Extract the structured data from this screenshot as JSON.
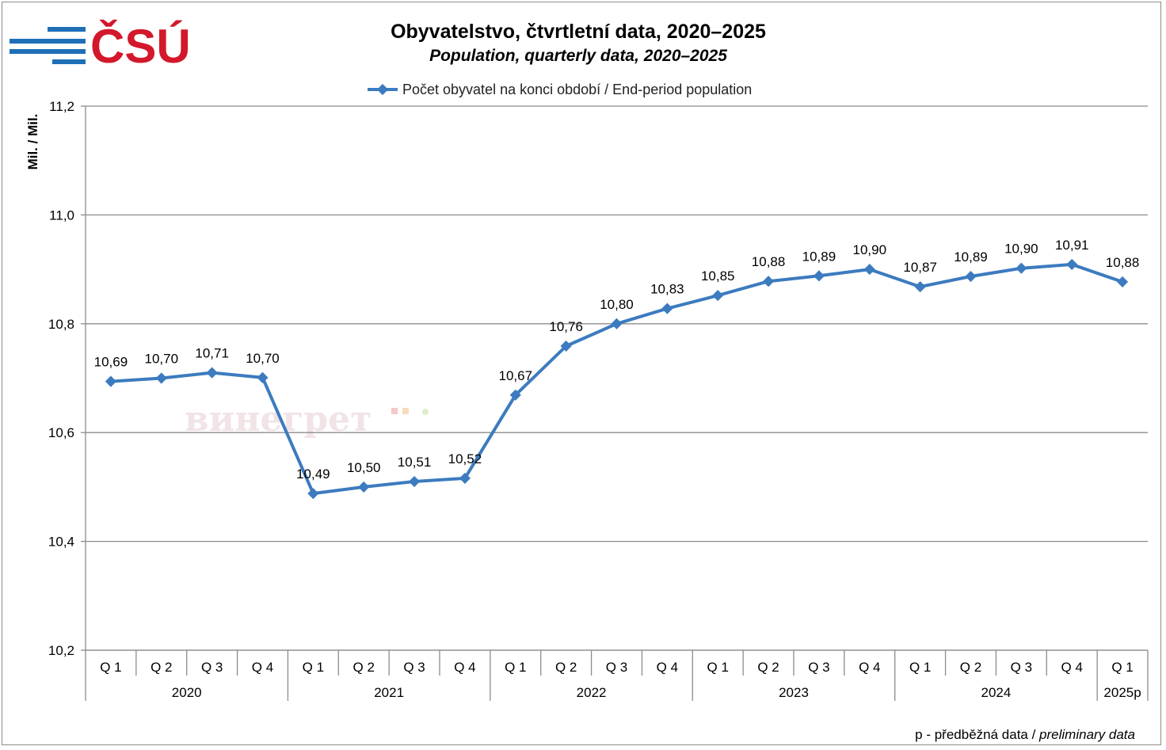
{
  "logo": {
    "text": "ČSÚ",
    "color": "#d3182b",
    "stripe_color": "#1f6fb8"
  },
  "watermark": "винегрет",
  "footnote": {
    "normal": "p - předběžná data / ",
    "italic": "preliminary data"
  },
  "chart_data": {
    "type": "line",
    "title": "Obyvatelstvo, čtvrtletní data, 2020–2025",
    "subtitle": "Population, quarterly data, 2020–2025",
    "ylabel": "Mil. / Mil.",
    "ylim": [
      10.2,
      11.2
    ],
    "yticks": [
      "10,2",
      "10,4",
      "10,6",
      "10,8",
      "11,0",
      "11,2"
    ],
    "ytick_values": [
      10.2,
      10.4,
      10.6,
      10.8,
      11.0,
      11.2
    ],
    "grid": true,
    "legend_position": "top-center",
    "categories": [
      "Q 1",
      "Q 2",
      "Q 3",
      "Q 4",
      "Q 1",
      "Q 2",
      "Q 3",
      "Q 4",
      "Q 1",
      "Q 2",
      "Q 3",
      "Q 4",
      "Q 1",
      "Q 2",
      "Q 3",
      "Q 4",
      "Q 1",
      "Q 2",
      "Q 3",
      "Q 4",
      "Q 1"
    ],
    "groups": [
      {
        "label": "2020",
        "count": 4
      },
      {
        "label": "2021",
        "count": 4
      },
      {
        "label": "2022",
        "count": 4
      },
      {
        "label": "2023",
        "count": 4
      },
      {
        "label": "2024",
        "count": 4
      },
      {
        "label": "2025p",
        "count": 1
      }
    ],
    "series": [
      {
        "name": "Počet obyvatel na konci období / End-period population",
        "color": "#3c7bbf",
        "values": [
          10.694,
          10.7,
          10.71,
          10.701,
          10.488,
          10.5,
          10.51,
          10.516,
          10.669,
          10.759,
          10.8,
          10.828,
          10.852,
          10.878,
          10.888,
          10.9,
          10.868,
          10.887,
          10.902,
          10.909,
          10.877
        ],
        "labels": [
          "10,69",
          "10,70",
          "10,71",
          "10,70",
          "10,49",
          "10,50",
          "10,51",
          "10,52",
          "10,67",
          "10,76",
          "10,80",
          "10,83",
          "10,85",
          "10,88",
          "10,89",
          "10,90",
          "10,87",
          "10,89",
          "10,90",
          "10,91",
          "10,88"
        ]
      }
    ]
  }
}
